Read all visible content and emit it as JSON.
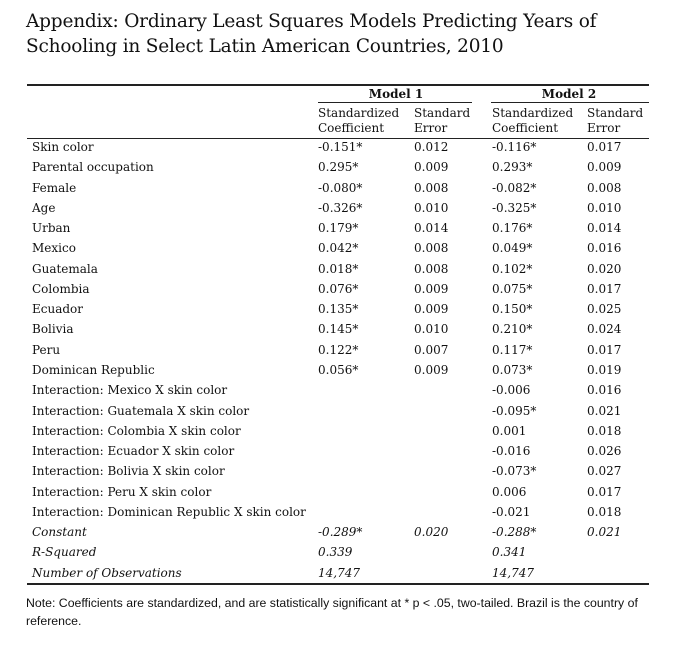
{
  "title": "Appendix: Ordinary Least Squares Models Predicting Years of Schooling in Select Latin American Countries, 2010",
  "models": [
    {
      "name": "Model 1",
      "col1_header": [
        "Standardized",
        "Coefficient"
      ],
      "col2_header": [
        "Standard",
        "Error"
      ]
    },
    {
      "name": "Model 2",
      "col1_header": [
        "Standardized",
        "Coefficient"
      ],
      "col2_header": [
        "Standard",
        "Error"
      ]
    }
  ],
  "rows": [
    {
      "label": "Skin color",
      "m1_coef": "-0.151*",
      "m1_se": "0.012",
      "m2_coef": "-0.116*",
      "m2_se": "0.017",
      "italic": false
    },
    {
      "label": "Parental occupation",
      "m1_coef": "0.295*",
      "m1_se": "0.009",
      "m2_coef": "0.293*",
      "m2_se": "0.009",
      "italic": false
    },
    {
      "label": "Female",
      "m1_coef": "-0.080*",
      "m1_se": "0.008",
      "m2_coef": "-0.082*",
      "m2_se": "0.008",
      "italic": false
    },
    {
      "label": "Age",
      "m1_coef": "-0.326*",
      "m1_se": "0.010",
      "m2_coef": "-0.325*",
      "m2_se": "0.010",
      "italic": false
    },
    {
      "label": "Urban",
      "m1_coef": "0.179*",
      "m1_se": "0.014",
      "m2_coef": "0.176*",
      "m2_se": "0.014",
      "italic": false
    },
    {
      "label": "Mexico",
      "m1_coef": "0.042*",
      "m1_se": "0.008",
      "m2_coef": "0.049*",
      "m2_se": "0.016",
      "italic": false
    },
    {
      "label": "Guatemala",
      "m1_coef": "0.018*",
      "m1_se": "0.008",
      "m2_coef": "0.102*",
      "m2_se": "0.020",
      "italic": false
    },
    {
      "label": "Colombia",
      "m1_coef": "0.076*",
      "m1_se": "0.009",
      "m2_coef": "0.075*",
      "m2_se": "0.017",
      "italic": false
    },
    {
      "label": "Ecuador",
      "m1_coef": "0.135*",
      "m1_se": "0.009",
      "m2_coef": "0.150*",
      "m2_se": "0.025",
      "italic": false
    },
    {
      "label": "Bolivia",
      "m1_coef": "0.145*",
      "m1_se": "0.010",
      "m2_coef": "0.210*",
      "m2_se": "0.024",
      "italic": false
    },
    {
      "label": "Peru",
      "m1_coef": "0.122*",
      "m1_se": "0.007",
      "m2_coef": "0.117*",
      "m2_se": "0.017",
      "italic": false
    },
    {
      "label": "Dominican Republic",
      "m1_coef": "0.056*",
      "m1_se": "0.009",
      "m2_coef": "0.073*",
      "m2_se": "0.019",
      "italic": false
    },
    {
      "label": "Interaction: Mexico X skin color",
      "m1_coef": "",
      "m1_se": "",
      "m2_coef": "-0.006",
      "m2_se": "0.016",
      "italic": false
    },
    {
      "label": "Interaction: Guatemala X skin color",
      "m1_coef": "",
      "m1_se": "",
      "m2_coef": "-0.095*",
      "m2_se": "0.021",
      "italic": false
    },
    {
      "label": "Interaction: Colombia X skin color",
      "m1_coef": "",
      "m1_se": "",
      "m2_coef": "0.001",
      "m2_se": "0.018",
      "italic": false
    },
    {
      "label": "Interaction: Ecuador X skin color",
      "m1_coef": "",
      "m1_se": "",
      "m2_coef": "-0.016",
      "m2_se": "0.026",
      "italic": false
    },
    {
      "label": "Interaction: Bolivia X skin color",
      "m1_coef": "",
      "m1_se": "",
      "m2_coef": "-0.073*",
      "m2_se": "0.027",
      "italic": false
    },
    {
      "label": "Interaction: Peru X skin color",
      "m1_coef": "",
      "m1_se": "",
      "m2_coef": "0.006",
      "m2_se": "0.017",
      "italic": false
    },
    {
      "label": "Interaction: Dominican Republic X skin color",
      "m1_coef": "",
      "m1_se": "",
      "m2_coef": "-0.021",
      "m2_se": "0.018",
      "italic": false
    },
    {
      "label": "Constant",
      "m1_coef": "-0.289*",
      "m1_se": "0.020",
      "m2_coef": "-0.288*",
      "m2_se": "0.021",
      "italic": true
    },
    {
      "label": "R-Squared",
      "m1_coef": "0.339",
      "m1_se": "",
      "m2_coef": "0.341",
      "m2_se": "",
      "italic": true
    },
    {
      "label": "Number of Observations",
      "m1_coef": "14,747",
      "m1_se": "",
      "m2_coef": "14,747",
      "m2_se": "",
      "italic": true
    }
  ],
  "note": "Note: Coefficients are standardized, and are statistically significant at * p < .05, two-tailed. Brazil is the country of reference."
}
